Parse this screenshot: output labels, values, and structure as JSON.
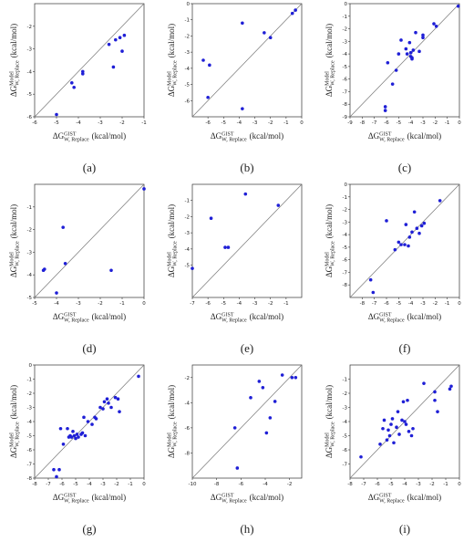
{
  "chart_data": [
    {
      "type": "scatter",
      "label": "(a)",
      "color": "#1f1fd6",
      "xlim": [
        -6,
        -1
      ],
      "ylim": [
        -6,
        -1
      ],
      "xticks": [
        -6,
        -5,
        -4,
        -3,
        -2,
        -1
      ],
      "yticks": [
        -6,
        -5,
        -4,
        -3,
        -2
      ],
      "xlabel": {
        "symbol": "ΔG",
        "sup": "GIST",
        "sub": "W, Replace",
        "unit": "(kcal/mol)"
      },
      "ylabel": {
        "symbol": "ΔG",
        "sup": "Model",
        "sub": "W, Replace",
        "unit": "(kcal/mol)"
      },
      "x": [
        -5,
        -4.3,
        -4.2,
        -3.8,
        -3.8,
        -2.6,
        -2.4,
        -2.3,
        -2.1,
        -2,
        -1.9
      ],
      "y": [
        -5.9,
        -4.5,
        -4.7,
        -4,
        -4.1,
        -2.8,
        -3.8,
        -2.6,
        -2.5,
        -3.1,
        -2.4
      ]
    },
    {
      "type": "scatter",
      "label": "(b)",
      "color": "#1f1fd6",
      "xlim": [
        -7,
        0
      ],
      "ylim": [
        -7,
        0
      ],
      "xticks": [
        -6,
        -5,
        -4,
        -3,
        -2,
        -1,
        0
      ],
      "yticks": [
        -6,
        -5,
        -4,
        -3,
        -2,
        -1,
        0
      ],
      "xlabel": {
        "symbol": "ΔG",
        "sup": "GIST",
        "sub": "W, Replace",
        "unit": "(kcal/mol)"
      },
      "ylabel": {
        "symbol": "ΔG",
        "sup": "Model",
        "sub": "W, Replace",
        "unit": "(kcal/mol)"
      },
      "x": [
        -6.3,
        -5.9,
        -6,
        -3.8,
        -3.8,
        -2.4,
        -2,
        -0.6,
        -0.4
      ],
      "y": [
        -3.5,
        -3.8,
        -5.8,
        -1.2,
        -6.5,
        -1.8,
        -2.1,
        -0.6,
        -0.4
      ]
    },
    {
      "type": "scatter",
      "label": "(c)",
      "color": "#1f1fd6",
      "xlim": [
        -9,
        0
      ],
      "ylim": [
        -9,
        0
      ],
      "xticks": [
        -9,
        -8,
        -7,
        -6,
        -5,
        -4,
        -3,
        -2,
        -1,
        0
      ],
      "yticks": [
        -9,
        -8,
        -7,
        -6,
        -5,
        -4,
        -3,
        -2,
        -1,
        0
      ],
      "xlabel": {
        "symbol": "ΔG",
        "sup": "GIST",
        "sub": "W, Replace",
        "unit": "(kcal/mol)"
      },
      "ylabel": {
        "symbol": "ΔG",
        "sup": "Model",
        "sub": "W, Replace",
        "unit": "(kcal/mol)"
      },
      "x": [
        -6.1,
        -6.1,
        -5.9,
        -5.5,
        -5.2,
        -5,
        -4.8,
        -4.4,
        -4.3,
        -4.1,
        -4,
        -3.9,
        -3.9,
        -3.8,
        -3.6,
        -3.3,
        -3,
        -3,
        -2.1,
        -1.9,
        -0.1,
        -4
      ],
      "y": [
        -8.2,
        -8.5,
        -4.7,
        -6.4,
        -5.3,
        -4,
        -2.9,
        -3.6,
        -4,
        -3.1,
        -4.2,
        -4.4,
        -4.3,
        -3.7,
        -2.3,
        -3.8,
        -2.7,
        -2.5,
        -1.6,
        -1.8,
        -0.2,
        -3.9
      ]
    },
    {
      "type": "scatter",
      "label": "(d)",
      "color": "#1f1fd6",
      "xlim": [
        -5,
        0
      ],
      "ylim": [
        -5,
        0
      ],
      "xticks": [
        -5,
        -4,
        -3,
        -2,
        -1,
        0
      ],
      "yticks": [
        -5,
        -4,
        -3,
        -2,
        -1
      ],
      "xlabel": {
        "symbol": "ΔG",
        "sup": "GIST",
        "sub": "W, Replace",
        "unit": "(kcal/mol)"
      },
      "ylabel": {
        "symbol": "ΔG",
        "sup": "Model",
        "sub": "W, Replace",
        "unit": "(kcal/mol)"
      },
      "x": [
        -4.6,
        -4.55,
        -4,
        -3.7,
        -3.6,
        -1.5,
        0
      ],
      "y": [
        -3.8,
        -3.75,
        -4.8,
        -1.9,
        -3.5,
        -3.8,
        -0.2
      ]
    },
    {
      "type": "scatter",
      "label": "(e)",
      "color": "#1f1fd6",
      "xlim": [
        -7,
        0
      ],
      "ylim": [
        -7,
        0
      ],
      "xticks": [
        -7,
        -6,
        -5,
        -4,
        -3,
        -2,
        -1
      ],
      "yticks": [
        -5,
        -4,
        -3,
        -2,
        -1
      ],
      "xlabel": {
        "symbol": "ΔG",
        "sup": "GIST",
        "sub": "W, Replace",
        "unit": "(kcal/mol)"
      },
      "ylabel": {
        "symbol": "ΔG",
        "sup": "Model",
        "sub": "W, Replace",
        "unit": "(kcal/mol)"
      },
      "x": [
        -7,
        -5.8,
        -4.9,
        -4.7,
        -3.6,
        -1.5
      ],
      "y": [
        -5.2,
        -2.1,
        -3.9,
        -3.9,
        -0.6,
        -1.3
      ]
    },
    {
      "type": "scatter",
      "label": "(f)",
      "color": "#1f1fd6",
      "xlim": [
        -9,
        0
      ],
      "ylim": [
        -9,
        0
      ],
      "xticks": [
        -8,
        -7,
        -6,
        -5,
        -4,
        -3,
        -2,
        -1,
        0
      ],
      "yticks": [
        -8,
        -7,
        -6,
        -5,
        -4,
        -3,
        -2,
        -1,
        0
      ],
      "xlabel": {
        "symbol": "ΔG",
        "sup": "GIST",
        "sub": "W, Replace",
        "unit": "(kcal/mol)"
      },
      "ylabel": {
        "symbol": "ΔG",
        "sup": "Model",
        "sub": "W, Replace",
        "unit": "(kcal/mol)"
      },
      "x": [
        -7.3,
        -7.1,
        -6,
        -5.3,
        -5,
        -4.8,
        -4.4,
        -4.2,
        -4.1,
        -3.7,
        -3.5,
        -3.3,
        -3.1,
        -2.9,
        -1.6,
        -3.9,
        -4.5
      ],
      "y": [
        -7.6,
        -8.6,
        -2.9,
        -5.2,
        -4.6,
        -4.8,
        -3.2,
        -4.9,
        -4.2,
        -2.2,
        -3.5,
        -3.9,
        -3.3,
        -3.1,
        -1.3,
        -3.8,
        -4.8
      ]
    },
    {
      "type": "scatter",
      "label": "(g)",
      "color": "#1f1fd6",
      "xlim": [
        -8,
        0
      ],
      "ylim": [
        -8,
        0
      ],
      "xticks": [
        -8,
        -7,
        -6,
        -5,
        -4,
        -3,
        -2,
        -1,
        0
      ],
      "yticks": [
        -8,
        -7,
        -6,
        -5,
        -4,
        -3,
        -2,
        -1,
        0
      ],
      "xlabel": {
        "symbol": "ΔG",
        "sup": "GIST",
        "sub": "W, Replace",
        "unit": "(kcal/mol)"
      },
      "ylabel": {
        "symbol": "ΔG",
        "sup": "Model",
        "sub": "W, Replace",
        "unit": "(kcal/mol)"
      },
      "x": [
        -6.6,
        -6.4,
        -6.2,
        -6.1,
        -5.9,
        -5.6,
        -5.4,
        -5.3,
        -5.2,
        -5.1,
        -5,
        -4.9,
        -4.8,
        -4.6,
        -4.5,
        -4.3,
        -4.1,
        -3.8,
        -3.6,
        -3.5,
        -3.2,
        -2.9,
        -2.7,
        -2.6,
        -2.4,
        -2.1,
        -1.9,
        -1.8,
        -0.4,
        -5.5,
        -4.4,
        -3
      ],
      "y": [
        -7.4,
        -7.9,
        -7.4,
        -4.5,
        -5.6,
        -4.5,
        -5,
        -5.1,
        -4.7,
        -5,
        -5.2,
        -4.9,
        -5.1,
        -4.9,
        -4.8,
        -5,
        -4,
        -4.2,
        -3.7,
        -3.8,
        -3,
        -2.6,
        -2.4,
        -2.7,
        -3,
        -2.3,
        -2.4,
        -3.3,
        -0.8,
        -5.1,
        -3.7,
        -3.1
      ]
    },
    {
      "type": "scatter",
      "label": "(h)",
      "color": "#1f1fd6",
      "xlim": [
        -10,
        -1
      ],
      "ylim": [
        -10,
        -1
      ],
      "xticks": [
        -10,
        -8,
        -6,
        -4,
        -2
      ],
      "yticks": [
        -8,
        -6,
        -4,
        -2
      ],
      "xlabel": {
        "symbol": "ΔG",
        "sup": "GIST",
        "sub": "W, Replace",
        "unit": "(kcal/mol)"
      },
      "ylabel": {
        "symbol": "ΔG",
        "sup": "Model",
        "sub": "W, Replace",
        "unit": "(kcal/mol)"
      },
      "x": [
        -6.5,
        -6.3,
        -5.2,
        -4.5,
        -4.2,
        -3.9,
        -3.6,
        -3.2,
        -2.6,
        -1.8,
        -1.5
      ],
      "y": [
        -6,
        -9.2,
        -3.6,
        -2.3,
        -2.8,
        -6.4,
        -5.2,
        -3.9,
        -1.8,
        -2,
        -2
      ]
    },
    {
      "type": "scatter",
      "label": "(i)",
      "color": "#1f1fd6",
      "xlim": [
        -8,
        0
      ],
      "ylim": [
        -8,
        0
      ],
      "xticks": [
        -8,
        -7,
        -6,
        -5,
        -4,
        -3,
        -2,
        -1,
        0
      ],
      "yticks": [
        -7,
        -6,
        -5,
        -4,
        -3,
        -2,
        -1
      ],
      "xlabel": {
        "symbol": "ΔG",
        "sup": "GIST",
        "sub": "W, Replace",
        "unit": "(kcal/mol)"
      },
      "ylabel": {
        "symbol": "ΔG",
        "sup": "Model",
        "sub": "W, Replace",
        "unit": "(kcal/mol)"
      },
      "x": [
        -7.2,
        -5.8,
        -5.6,
        -5.5,
        -5.3,
        -5.1,
        -5,
        -4.9,
        -4.8,
        -4.6,
        -4.5,
        -4.4,
        -4.2,
        -4.1,
        -3.9,
        -3.8,
        -3.7,
        -3.5,
        -3.4,
        -2.6,
        -1.8,
        -1.8,
        -1.6,
        -0.7,
        -0.6,
        -5.2,
        -4
      ],
      "y": [
        -6.5,
        -5.6,
        -4.5,
        -3.9,
        -5.3,
        -5,
        -4.2,
        -3.8,
        -5.5,
        -4.4,
        -3.3,
        -4.9,
        -3.9,
        -2.6,
        -4.2,
        -2.5,
        -4.7,
        -5,
        -4.5,
        -1.3,
        -1.9,
        -2.5,
        -3.3,
        -1.7,
        -1.5,
        -4.6,
        -4
      ]
    }
  ]
}
